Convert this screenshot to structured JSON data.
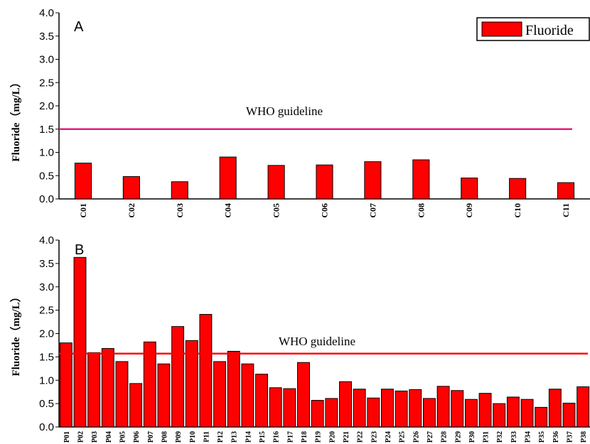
{
  "chart_data": [
    {
      "type": "bar",
      "panel_label": "A",
      "ylabel": "Fluoride（mg/L）",
      "ylim": [
        0,
        4.0
      ],
      "yticks": [
        "0.0",
        "0.5",
        "1.0",
        "1.5",
        "2.0",
        "2.5",
        "3.0",
        "3.5",
        "4.0"
      ],
      "categories": [
        "C01",
        "C02",
        "C03",
        "C04",
        "C05",
        "C06",
        "C07",
        "C08",
        "C09",
        "C10",
        "C11"
      ],
      "series": [
        {
          "name": "Fluoride",
          "values": [
            0.77,
            0.48,
            0.37,
            0.9,
            0.72,
            0.73,
            0.8,
            0.84,
            0.45,
            0.44,
            0.35
          ]
        }
      ],
      "guideline": {
        "label": "WHO guideline",
        "value": 1.5,
        "color": "#e8197e"
      },
      "bar_color": "#ff0000",
      "legend": {
        "position": "top-right",
        "label": "Fluoride"
      }
    },
    {
      "type": "bar",
      "panel_label": "B",
      "ylabel": "Fluoride（mg/L）",
      "ylim": [
        0,
        4.0
      ],
      "yticks": [
        "0.0",
        "0.5",
        "1.0",
        "1.5",
        "2.0",
        "2.5",
        "3.0",
        "3.5",
        "4.0"
      ],
      "categories": [
        "P01",
        "P02",
        "P03",
        "P04",
        "P05",
        "P06",
        "P07",
        "P08",
        "P09",
        "P10",
        "P11",
        "P12",
        "P13",
        "P14",
        "P15",
        "P16",
        "P17",
        "P18",
        "P19",
        "P20",
        "P21",
        "P22",
        "P23",
        "P24",
        "P25",
        "P26",
        "P27",
        "P28",
        "P29",
        "P30",
        "P31",
        "P32",
        "P33",
        "P34",
        "P35",
        "P36",
        "P37",
        "P38"
      ],
      "series": [
        {
          "name": "Fluoride",
          "values": [
            1.8,
            3.63,
            1.59,
            1.68,
            1.4,
            0.93,
            1.82,
            1.35,
            2.15,
            1.85,
            2.41,
            1.4,
            1.62,
            1.35,
            1.13,
            0.84,
            0.82,
            1.38,
            0.57,
            0.61,
            0.97,
            0.81,
            0.62,
            0.81,
            0.77,
            0.8,
            0.61,
            0.87,
            0.78,
            0.59,
            0.72,
            0.5,
            0.64,
            0.59,
            0.42,
            0.81,
            0.51,
            0.86
          ]
        }
      ],
      "guideline": {
        "label": "WHO guideline",
        "value": 1.57,
        "color": "#ff0000"
      },
      "bar_color": "#ff0000"
    }
  ]
}
